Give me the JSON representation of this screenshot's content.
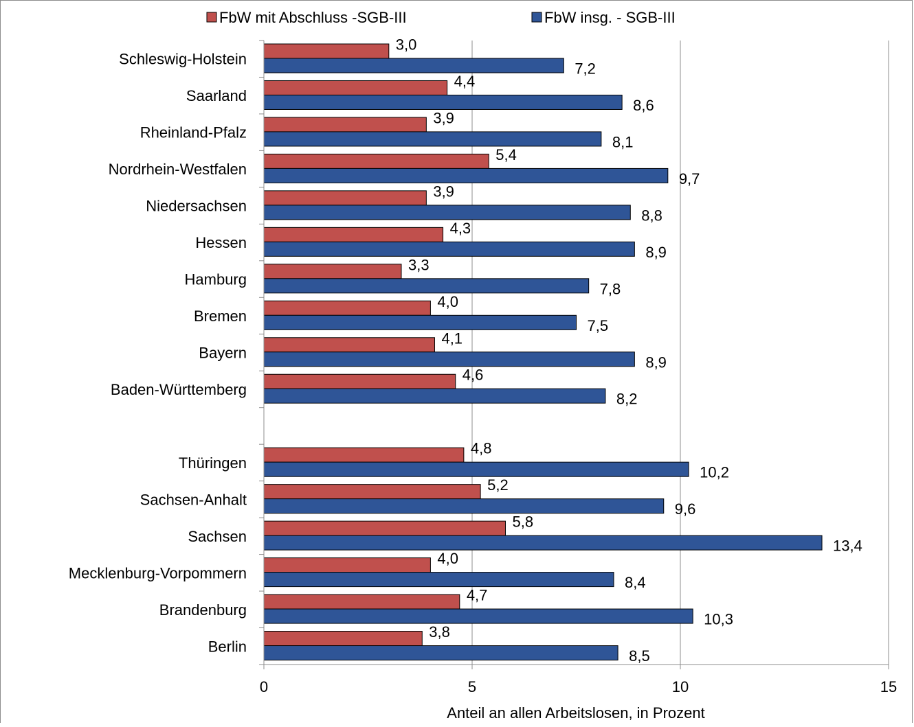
{
  "chart_data": {
    "type": "bar",
    "orientation": "horizontal",
    "xlabel": "Anteil an allen Arbeitslosen, in Prozent",
    "xlim": [
      0,
      15
    ],
    "xticks": [
      "0",
      "5",
      "10",
      "15"
    ],
    "grid": true,
    "legend_position": "top",
    "categories": [
      "Schleswig-Holstein",
      "Saarland",
      "Rheinland-Pfalz",
      "Nordrhein-Westfalen",
      "Niedersachsen",
      "Hessen",
      "Hamburg",
      "Bremen",
      "Bayern",
      "Baden-Württemberg",
      "",
      "Thüringen",
      "Sachsen-Anhalt",
      "Sachsen",
      "Mecklenburg-Vorpommern",
      "Brandenburg",
      "Berlin"
    ],
    "series": [
      {
        "name": "FbW mit Abschluss -SGB-III",
        "color": "#c0504d",
        "values": [
          3.0,
          4.4,
          3.9,
          5.4,
          3.9,
          4.3,
          3.3,
          4.0,
          4.1,
          4.6,
          null,
          4.8,
          5.2,
          5.8,
          4.0,
          4.7,
          3.8
        ],
        "labels": [
          "3,0",
          "4,4",
          "3,9",
          "5,4",
          "3,9",
          "4,3",
          "3,3",
          "4,0",
          "4,1",
          "4,6",
          "",
          "4,8",
          "5,2",
          "5,8",
          "4,0",
          "4,7",
          "3,8"
        ]
      },
      {
        "name": "FbW insg. - SGB-III",
        "color": "#2f5597",
        "values": [
          7.2,
          8.6,
          8.1,
          9.7,
          8.8,
          8.9,
          7.8,
          7.5,
          8.9,
          8.2,
          null,
          10.2,
          9.6,
          13.4,
          8.4,
          10.3,
          8.5
        ],
        "labels": [
          "7,2",
          "8,6",
          "8,1",
          "9,7",
          "8,8",
          "8,9",
          "7,8",
          "7,5",
          "8,9",
          "8,2",
          "",
          "10,2",
          "9,6",
          "13,4",
          "8,4",
          "10,3",
          "8,5"
        ]
      }
    ]
  }
}
